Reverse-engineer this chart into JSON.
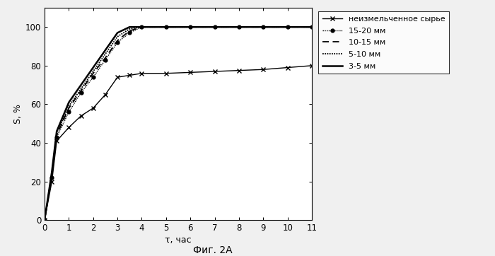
{
  "xlabel": "τ, час",
  "ylabel": "S, %",
  "caption": "Фиг. 2A",
  "xlim": [
    0,
    11
  ],
  "ylim": [
    0,
    110
  ],
  "yticks": [
    0,
    20,
    40,
    60,
    80,
    100
  ],
  "xticks": [
    0,
    1,
    2,
    3,
    4,
    5,
    6,
    7,
    8,
    9,
    10,
    11
  ],
  "series": [
    {
      "label": "неизмельченное сырье",
      "x": [
        0,
        0.3,
        0.5,
        1,
        1.5,
        2,
        2.5,
        3,
        3.5,
        4,
        5,
        6,
        7,
        8,
        9,
        10,
        11
      ],
      "y": [
        0,
        20,
        41,
        48,
        54,
        58,
        65,
        74,
        75,
        76,
        76,
        76.5,
        77,
        77.5,
        78,
        79,
        80
      ],
      "color": "#000000",
      "linestyle": "-",
      "marker": "x",
      "markersize": 5,
      "markevery": 1,
      "linewidth": 1.0,
      "zorder": 3
    },
    {
      "label": "15-20 мм",
      "x": [
        0,
        0.3,
        0.5,
        1,
        1.5,
        2,
        2.5,
        3,
        3.5,
        4,
        5,
        6,
        7,
        8,
        9,
        10,
        11
      ],
      "y": [
        0,
        22,
        43,
        56,
        66,
        74,
        83,
        92,
        97,
        100,
        100,
        100,
        100,
        100,
        100,
        100,
        100
      ],
      "color": "#000000",
      "linestyle": "dotted",
      "marker": "o",
      "markersize": 3.5,
      "markevery": 3,
      "linewidth": 1.0,
      "zorder": 4
    },
    {
      "label": "10-15 мм",
      "x": [
        0,
        0.3,
        0.5,
        1,
        1.5,
        2,
        2.5,
        3,
        3.5,
        4,
        5,
        6,
        7,
        8,
        9,
        10,
        11
      ],
      "y": [
        0,
        23,
        44,
        58,
        67,
        76,
        84,
        93,
        98,
        100,
        100,
        100,
        100,
        100,
        100,
        100,
        100
      ],
      "color": "#000000",
      "linestyle": "dashed",
      "marker": null,
      "markersize": 0,
      "markevery": 1,
      "linewidth": 1.3,
      "zorder": 3
    },
    {
      "label": "5-10 мм",
      "x": [
        0,
        0.3,
        0.5,
        1,
        1.5,
        2,
        2.5,
        3,
        3.5,
        4,
        5,
        6,
        7,
        8,
        9,
        10,
        11
      ],
      "y": [
        0,
        24,
        45,
        59,
        68,
        77,
        86,
        95,
        99,
        100,
        100,
        100,
        100,
        100,
        100,
        100,
        100
      ],
      "color": "#000000",
      "linestyle": "densely_dotted",
      "marker": null,
      "markersize": 0,
      "markevery": 1,
      "linewidth": 1.3,
      "zorder": 3
    },
    {
      "label": "3-5 мм",
      "x": [
        0,
        0.3,
        0.5,
        1,
        1.5,
        2,
        2.5,
        3,
        3.5,
        4,
        5,
        6,
        7,
        8,
        9,
        10,
        11
      ],
      "y": [
        0,
        25,
        46,
        61,
        70,
        79,
        88,
        97,
        100,
        100,
        100,
        100,
        100,
        100,
        100,
        100,
        100
      ],
      "color": "#000000",
      "linestyle": "-",
      "marker": null,
      "markersize": 0,
      "markevery": 1,
      "linewidth": 1.8,
      "zorder": 2
    }
  ],
  "background_color": "#f0f0f0",
  "plot_bg_color": "#ffffff"
}
